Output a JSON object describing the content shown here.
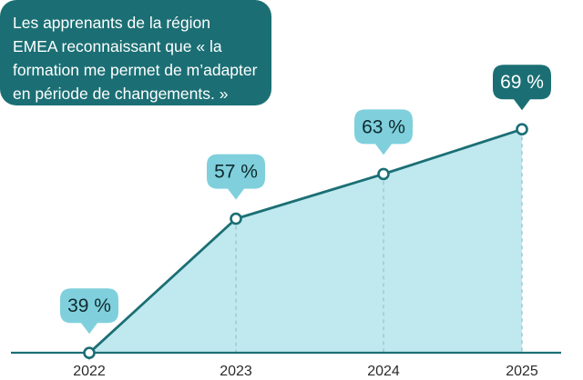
{
  "header": {
    "title": "Les apprenants de la région EMEA reconnaissant que « la formation me permet de m’adapter en période de changements. »"
  },
  "chart_data": {
    "type": "area",
    "title": "Les apprenants de la région EMEA reconnaissant que « la formation me permet de m’adapter en période de changements. »",
    "categories": [
      "2022",
      "2023",
      "2024",
      "2025"
    ],
    "series": [
      {
        "values": [
          39,
          57,
          63,
          69
        ],
        "labels": [
          "39 %",
          "57 %",
          "63 %",
          "69 %"
        ]
      }
    ],
    "xlabel": "",
    "ylabel": "",
    "ylim": [
      0,
      90
    ],
    "grid": false,
    "colors": {
      "line": "#1b6f74",
      "fill": "#bfe8ef",
      "label_bubble": "#7fd0dc",
      "label_bubble_last": "#1b6f74",
      "baseline": "#1b6f74",
      "dash": "#9fc9cf"
    }
  }
}
